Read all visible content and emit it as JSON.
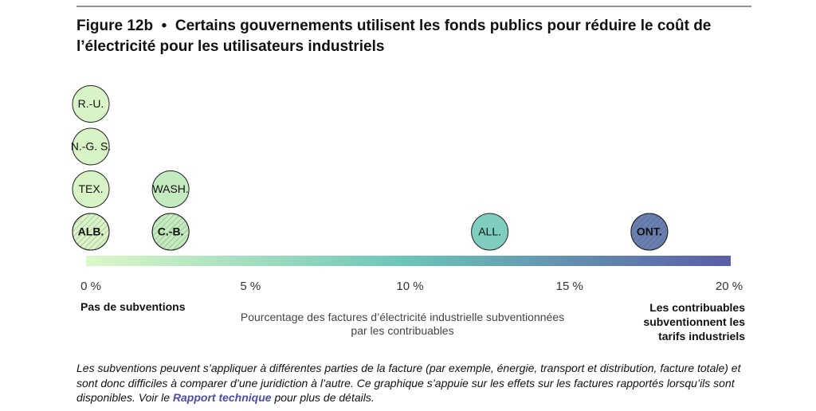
{
  "chart_data": {
    "type": "dot",
    "figure_label": "Figure 12b",
    "title": "Certains gouvernements utilisent les fonds publics pour réduire le coût de l’électricité pour les utilisateurs industriels",
    "points": [
      {
        "label": "ALB.",
        "x": 0,
        "color": "#d8f3c6",
        "hatched": true
      },
      {
        "label": "TEX.",
        "x": 0,
        "color": "#d8f3c6",
        "hatched": false
      },
      {
        "label": "N.-G. S.",
        "x": 0,
        "color": "#d8f3c6",
        "hatched": false
      },
      {
        "label": "R.-U.",
        "x": 0,
        "color": "#d8f3c6",
        "hatched": false
      },
      {
        "label": "C.-B.",
        "x": 2.5,
        "color": "#c4ebbf",
        "hatched": true
      },
      {
        "label": "WASH.",
        "x": 2.5,
        "color": "#c4ebbf",
        "hatched": false
      },
      {
        "label": "ALL.",
        "x": 12.5,
        "color": "#7fcdc0",
        "hatched": false
      },
      {
        "label": "ONT.",
        "x": 17.5,
        "color": "#6b80b2",
        "hatched": true
      }
    ],
    "xlim": [
      0,
      20
    ],
    "xticks": [
      {
        "value": 0,
        "label": "0 %"
      },
      {
        "value": 5,
        "label": "5 %"
      },
      {
        "value": 10,
        "label": "10 %"
      },
      {
        "value": 15,
        "label": "15 %"
      },
      {
        "value": 20,
        "label": "20 %"
      }
    ],
    "colorbar": [
      "#dcf8c8",
      "#6cc4b8",
      "#5a5ca8"
    ],
    "xlabel": "Pourcentage des factures d’électricité industrielle subventionnées par les contribuables",
    "left_label": "Pas de subventions",
    "right_label": "Les contribuables subventionnent les tarifs industriels",
    "note_before": "Les subventions peuvent s’appliquer à différentes parties de la facture (par exemple, énergie, transport et distribution, facture totale) et sont donc difficiles à comparer d’une juridiction à l’autre. Ce graphique s’appuie sur les effets sur les factures rapportés lorsqu’ils sont disponibles. Voir le",
    "note_link": "Rapport technique",
    "note_after": "pour plus de détails."
  }
}
